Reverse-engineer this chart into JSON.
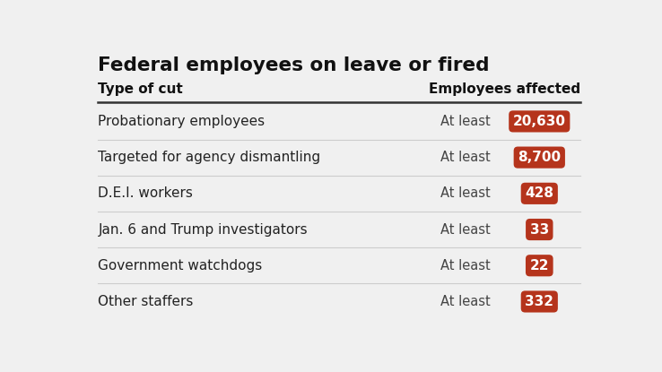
{
  "title": "Federal employees on leave or fired",
  "col1_header": "Type of cut",
  "col2_header": "Employees affected",
  "rows": [
    {
      "label": "Probationary employees",
      "prefix": "At least",
      "value": "20,630"
    },
    {
      "label": "Targeted for agency dismantling",
      "prefix": "At least",
      "value": "8,700"
    },
    {
      "label": "D.E.I. workers",
      "prefix": "At least",
      "value": "428"
    },
    {
      "label": "Jan. 6 and Trump investigators",
      "prefix": "At least",
      "value": "33"
    },
    {
      "label": "Government watchdogs",
      "prefix": "At least",
      "value": "22"
    },
    {
      "label": "Other staffers",
      "prefix": "At least",
      "value": "332"
    }
  ],
  "background_color": "#f0f0f0",
  "badge_color": "#b5341c",
  "badge_text_color": "#ffffff",
  "label_color": "#222222",
  "prefix_color": "#444444",
  "header_color": "#111111",
  "title_color": "#111111",
  "separator_color": "#cccccc",
  "top_separator_color": "#333333"
}
